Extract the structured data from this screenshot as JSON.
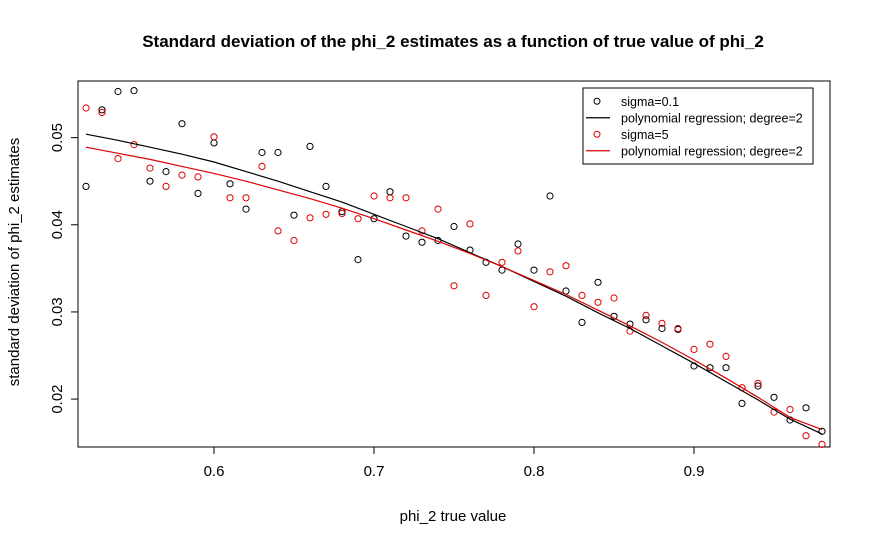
{
  "chart_data": {
    "type": "scatter",
    "title": "Standard deviation of the phi_2 estimates as a function of true value of phi_2",
    "xlabel": "phi_2 true value",
    "ylabel": "standard deviation of phi_2 estimates",
    "xlim": [
      0.515,
      0.985
    ],
    "ylim": [
      0.0145,
      0.0565
    ],
    "x_ticks": [
      0.6,
      0.7,
      0.8,
      0.9
    ],
    "x_tick_labels": [
      "0.6",
      "0.7",
      "0.8",
      "0.9"
    ],
    "y_ticks": [
      0.02,
      0.03,
      0.04,
      0.05
    ],
    "y_tick_labels": [
      "0.02",
      "0.03",
      "0.04",
      "0.05"
    ],
    "legend_position": "top-right",
    "legend": [
      {
        "label": "sigma=0.1",
        "kind": "point",
        "color": "#000000"
      },
      {
        "label": "polynomial regression; degree=2",
        "kind": "line",
        "color": "#000000"
      },
      {
        "label": "sigma=5",
        "kind": "point",
        "color": "#dd0000"
      },
      {
        "label": "polynomial regression; degree=2",
        "kind": "line",
        "color": "#dd0000"
      }
    ],
    "series": [
      {
        "kind": "points",
        "color": "#000000",
        "x": [
          0.52,
          0.53,
          0.54,
          0.55,
          0.56,
          0.57,
          0.58,
          0.59,
          0.6,
          0.61,
          0.62,
          0.63,
          0.64,
          0.65,
          0.66,
          0.67,
          0.68,
          0.69,
          0.7,
          0.71,
          0.72,
          0.73,
          0.74,
          0.75,
          0.76,
          0.77,
          0.78,
          0.79,
          0.8,
          0.81,
          0.82,
          0.83,
          0.84,
          0.85,
          0.86,
          0.87,
          0.88,
          0.89,
          0.9,
          0.91,
          0.92,
          0.93,
          0.94,
          0.95,
          0.96,
          0.97,
          0.98
        ],
        "y": [
          0.0444,
          0.0532,
          0.0553,
          0.0554,
          0.045,
          0.0461,
          0.0516,
          0.0436,
          0.0494,
          0.0447,
          0.0418,
          0.0483,
          0.0483,
          0.0411,
          0.049,
          0.0444,
          0.0415,
          0.036,
          0.0407,
          0.0438,
          0.0387,
          0.038,
          0.0382,
          0.0398,
          0.0371,
          0.0357,
          0.0348,
          0.0378,
          0.0348,
          0.0433,
          0.0324,
          0.0288,
          0.0334,
          0.0295,
          0.0286,
          0.0291,
          0.0281,
          0.028,
          0.0238,
          0.0236,
          0.0236,
          0.0195,
          0.0215,
          0.0202,
          0.0176,
          0.019,
          0.0163
        ]
      },
      {
        "kind": "points",
        "color": "#dd0000",
        "x": [
          0.52,
          0.53,
          0.54,
          0.55,
          0.56,
          0.57,
          0.58,
          0.59,
          0.6,
          0.61,
          0.62,
          0.63,
          0.64,
          0.65,
          0.66,
          0.67,
          0.68,
          0.69,
          0.7,
          0.71,
          0.72,
          0.73,
          0.74,
          0.75,
          0.76,
          0.77,
          0.78,
          0.79,
          0.8,
          0.81,
          0.82,
          0.83,
          0.84,
          0.85,
          0.86,
          0.87,
          0.88,
          0.89,
          0.9,
          0.91,
          0.92,
          0.93,
          0.94,
          0.95,
          0.96,
          0.97,
          0.98
        ],
        "y": [
          0.0534,
          0.0529,
          0.0476,
          0.0492,
          0.0465,
          0.0444,
          0.0457,
          0.0455,
          0.0501,
          0.0431,
          0.0431,
          0.0467,
          0.0393,
          0.0382,
          0.0408,
          0.0412,
          0.0413,
          0.0407,
          0.0433,
          0.0431,
          0.0431,
          0.0393,
          0.0418,
          0.033,
          0.0401,
          0.0319,
          0.0357,
          0.037,
          0.0306,
          0.0346,
          0.0353,
          0.0319,
          0.0311,
          0.0316,
          0.0278,
          0.0296,
          0.0287,
          0.0281,
          0.0257,
          0.0263,
          0.0249,
          0.0213,
          0.0218,
          0.0185,
          0.0188,
          0.0158,
          0.0148
        ]
      },
      {
        "kind": "line",
        "color": "#000000",
        "x": [
          0.52,
          0.54,
          0.56,
          0.58,
          0.6,
          0.62,
          0.64,
          0.66,
          0.68,
          0.7,
          0.72,
          0.74,
          0.76,
          0.78,
          0.8,
          0.82,
          0.84,
          0.86,
          0.88,
          0.9,
          0.92,
          0.94,
          0.96,
          0.98
        ],
        "y": [
          0.0504,
          0.0497,
          0.0489,
          0.0481,
          0.0472,
          0.0461,
          0.045,
          0.0438,
          0.0426,
          0.0412,
          0.0398,
          0.0384,
          0.0368,
          0.0352,
          0.0335,
          0.0318,
          0.0299,
          0.0281,
          0.0261,
          0.0241,
          0.022,
          0.0199,
          0.0177,
          0.016
        ]
      },
      {
        "kind": "line",
        "color": "#dd0000",
        "x": [
          0.52,
          0.54,
          0.56,
          0.58,
          0.6,
          0.62,
          0.64,
          0.66,
          0.68,
          0.7,
          0.72,
          0.74,
          0.76,
          0.78,
          0.8,
          0.82,
          0.84,
          0.86,
          0.88,
          0.9,
          0.92,
          0.94,
          0.96,
          0.98
        ],
        "y": [
          0.0489,
          0.0482,
          0.0475,
          0.0467,
          0.0459,
          0.045,
          0.044,
          0.043,
          0.0419,
          0.0407,
          0.0394,
          0.0381,
          0.0367,
          0.0352,
          0.0336,
          0.032,
          0.0302,
          0.0284,
          0.0265,
          0.0245,
          0.0224,
          0.0202,
          0.0179,
          0.0165
        ]
      }
    ]
  }
}
